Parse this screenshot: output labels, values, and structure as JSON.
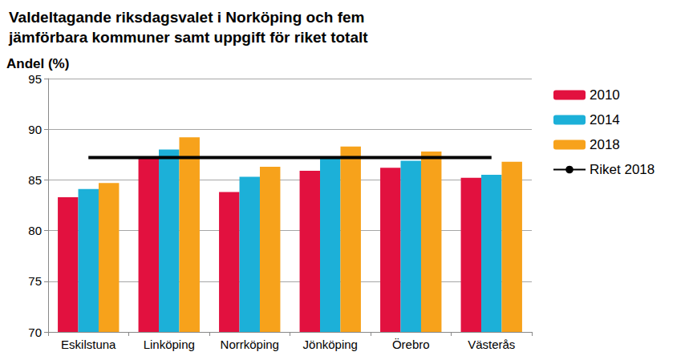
{
  "chart_data": {
    "type": "bar",
    "title": "Valdeltagande riksdagsvalet i Norköping och fem\njämförbara kommuner samt uppgift för riket totalt",
    "ylabel": "Andel (%)",
    "categories": [
      "Eskilstuna",
      "Linköping",
      "Norrköping",
      "Jönköping",
      "Örebro",
      "Västerås"
    ],
    "series": [
      {
        "name": "2010",
        "color": "#e2113f",
        "values": [
          83.3,
          87.2,
          83.8,
          85.9,
          86.2,
          85.2
        ]
      },
      {
        "name": "2014",
        "color": "#1cb0d8",
        "values": [
          84.1,
          88.0,
          85.3,
          87.3,
          86.9,
          85.5
        ]
      },
      {
        "name": "2018",
        "color": "#f7a21b",
        "values": [
          84.7,
          89.2,
          86.3,
          88.3,
          87.8,
          86.8
        ]
      },
      {
        "name": "Riket 2018",
        "type": "line",
        "color": "#000000",
        "values": [
          87.2,
          87.2,
          87.2,
          87.2,
          87.2,
          87.2
        ]
      }
    ],
    "ylim": [
      70,
      95
    ],
    "yticks": [
      70,
      75,
      80,
      85,
      90,
      95
    ],
    "grid": true,
    "legend": "right"
  }
}
